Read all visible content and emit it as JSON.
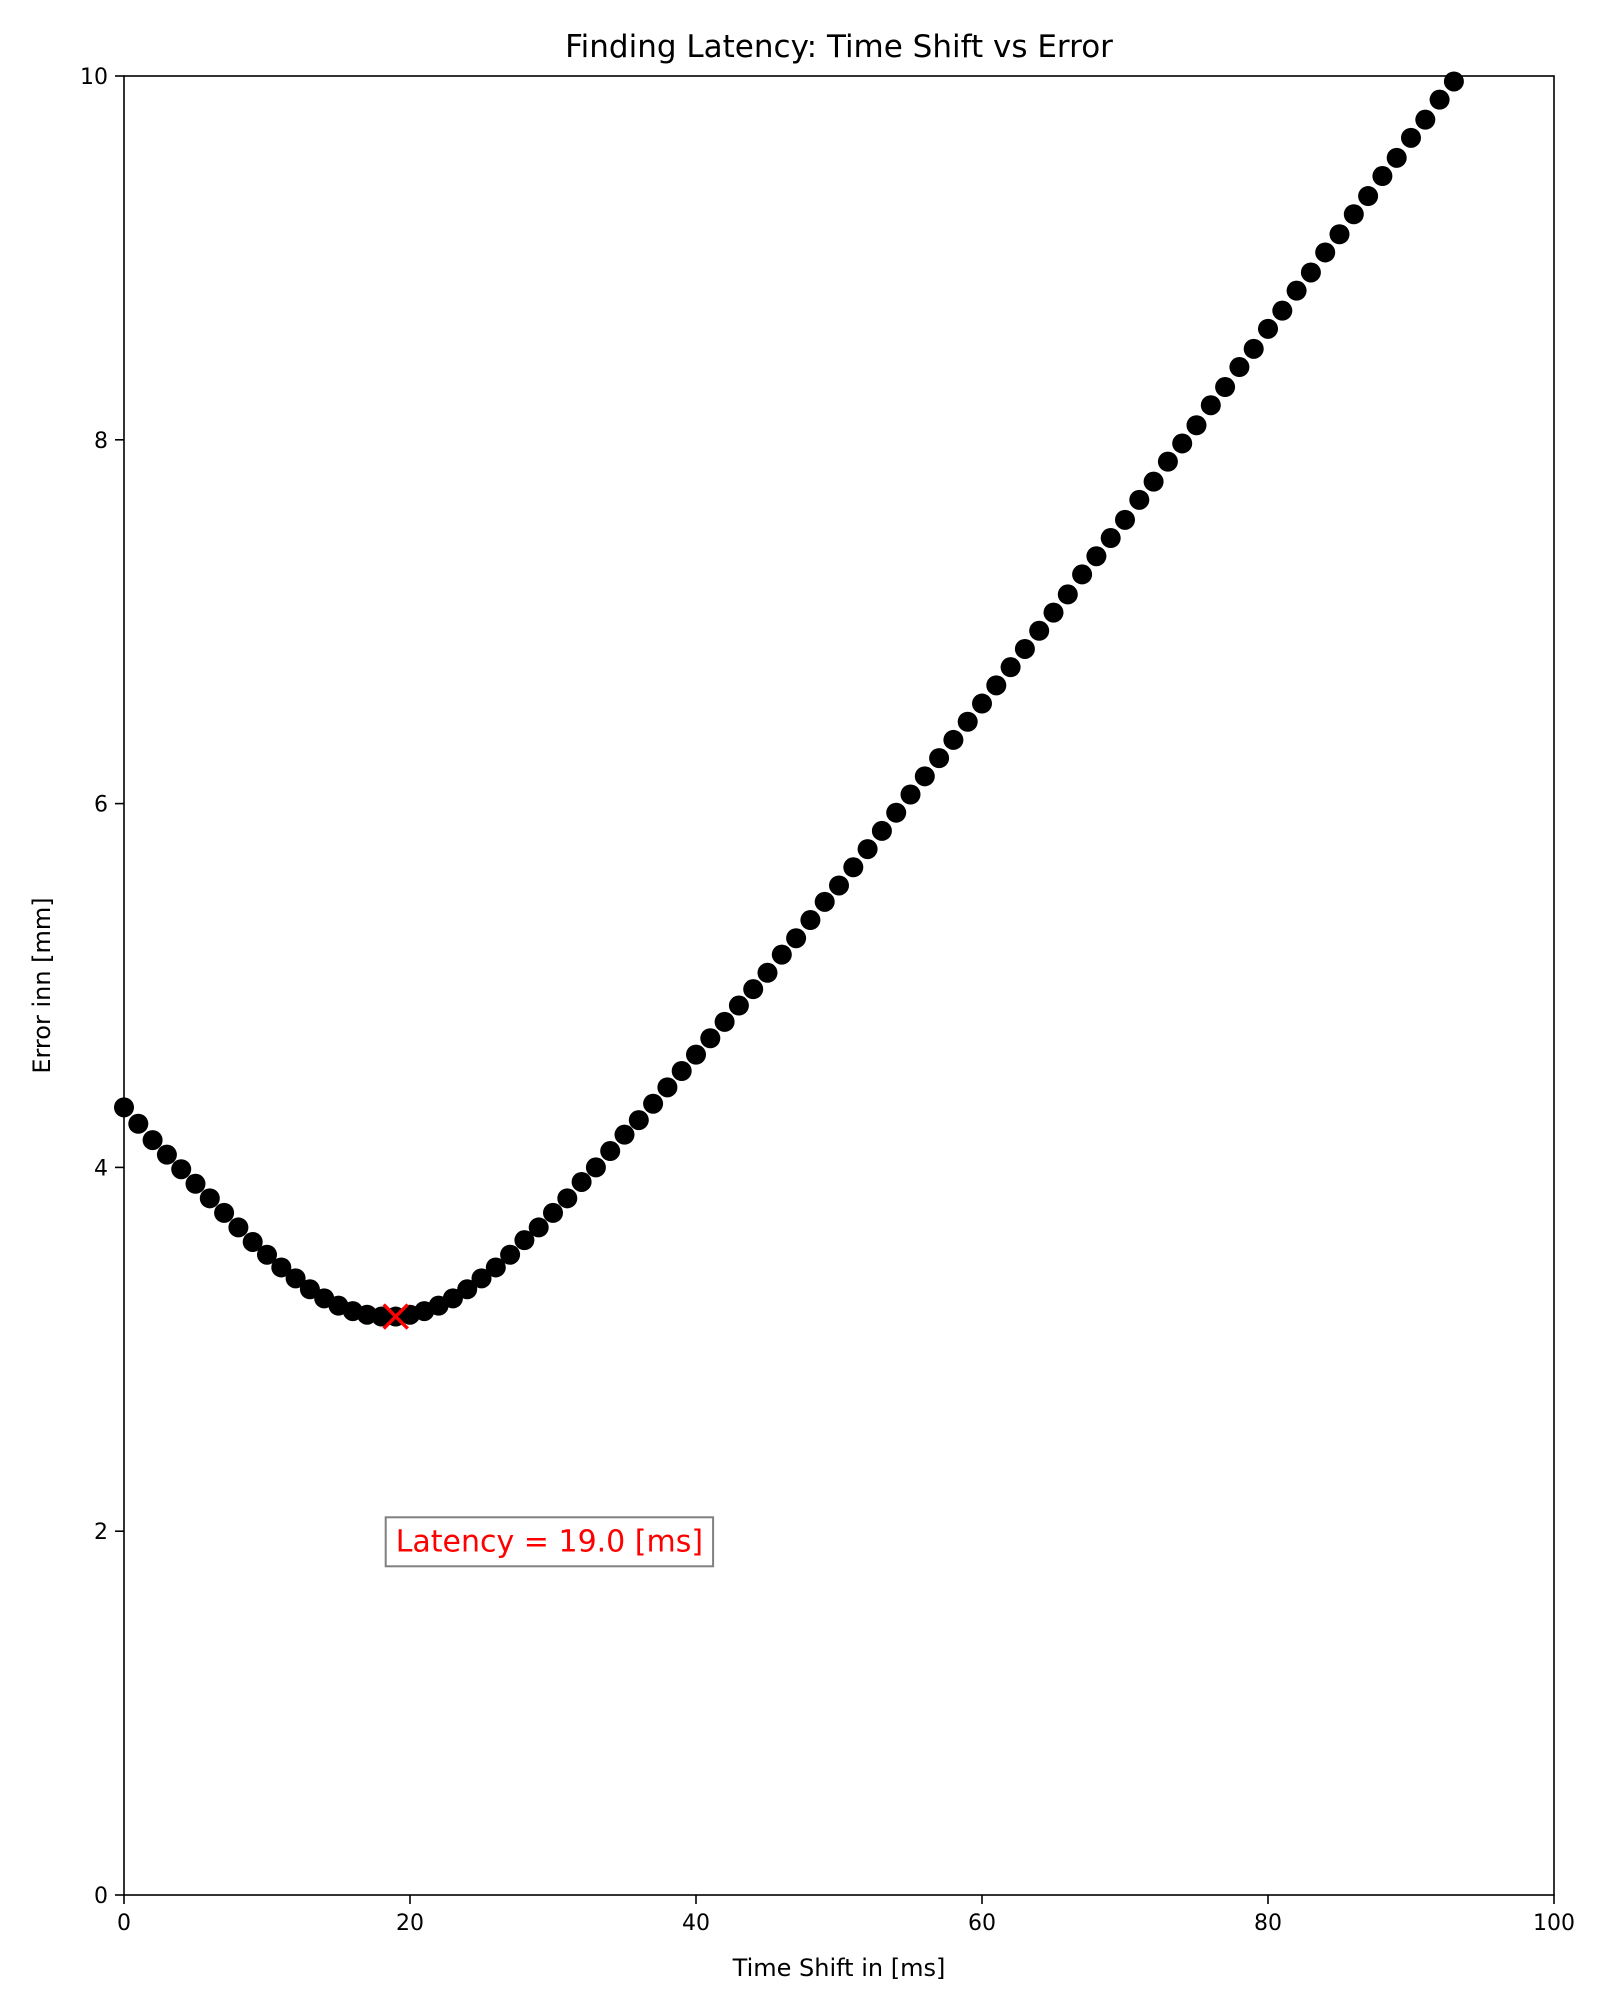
{
  "chart_data": {
    "type": "scatter",
    "title": "Finding Latency: Time Shift vs Error",
    "xlabel": "Time Shift in [ms]",
    "ylabel": "Error inn [mm]",
    "xlim": [
      0,
      100
    ],
    "ylim": [
      0,
      10
    ],
    "xticks": [
      "0",
      "20",
      "40",
      "60",
      "80",
      "100"
    ],
    "yticks": [
      "0",
      "2",
      "4",
      "6",
      "8",
      "10"
    ],
    "grid": false,
    "legend": "none",
    "series": [
      {
        "color": "#000000",
        "marker": "circle",
        "x": [
          0,
          1,
          2,
          3,
          4,
          5,
          6,
          7,
          8,
          9,
          10,
          11,
          12,
          13,
          14,
          15,
          16,
          17,
          18,
          19,
          20,
          21,
          22,
          23,
          24,
          25,
          26,
          27,
          28,
          29,
          30,
          31,
          32,
          33,
          34,
          35,
          36,
          37,
          38,
          39,
          40,
          41,
          42,
          43,
          44,
          45,
          46,
          47,
          48,
          49,
          50,
          51,
          52,
          53,
          54,
          55,
          56,
          57,
          58,
          59,
          60,
          61,
          62,
          63,
          64,
          65,
          66,
          67,
          68,
          69,
          70,
          71,
          72,
          73,
          74,
          75,
          76,
          77,
          78,
          79,
          80,
          81,
          82,
          83,
          84,
          85,
          86,
          87,
          88,
          89,
          90,
          91,
          92,
          93
        ],
        "y": [
          4.33,
          4.24,
          4.15,
          4.07,
          3.99,
          3.91,
          3.83,
          3.75,
          3.67,
          3.59,
          3.52,
          3.45,
          3.39,
          3.33,
          3.28,
          3.24,
          3.21,
          3.19,
          3.18,
          3.18,
          3.19,
          3.21,
          3.24,
          3.28,
          3.33,
          3.39,
          3.45,
          3.52,
          3.6,
          3.67,
          3.75,
          3.83,
          3.92,
          4.0,
          4.09,
          4.18,
          4.26,
          4.35,
          4.44,
          4.53,
          4.62,
          4.71,
          4.8,
          4.89,
          4.98,
          5.07,
          5.17,
          5.26,
          5.36,
          5.46,
          5.55,
          5.65,
          5.75,
          5.85,
          5.95,
          6.05,
          6.15,
          6.25,
          6.35,
          6.45,
          6.55,
          6.65,
          6.75,
          6.85,
          6.95,
          7.05,
          7.15,
          7.26,
          7.36,
          7.46,
          7.56,
          7.67,
          7.77,
          7.88,
          7.98,
          8.08,
          8.19,
          8.29,
          8.4,
          8.5,
          8.61,
          8.71,
          8.82,
          8.92,
          9.03,
          9.13,
          9.24,
          9.34,
          9.45,
          9.55,
          9.66,
          9.76,
          9.87,
          9.97
        ]
      }
    ],
    "highlight": {
      "x": 19,
      "y": 3.18,
      "marker": "x",
      "color": "#ff0000"
    },
    "annotation": {
      "text": "Latency = 19.0 [ms]",
      "x": 19,
      "y": 1.95,
      "color": "#ff0000",
      "box_edge": "#808080"
    }
  }
}
